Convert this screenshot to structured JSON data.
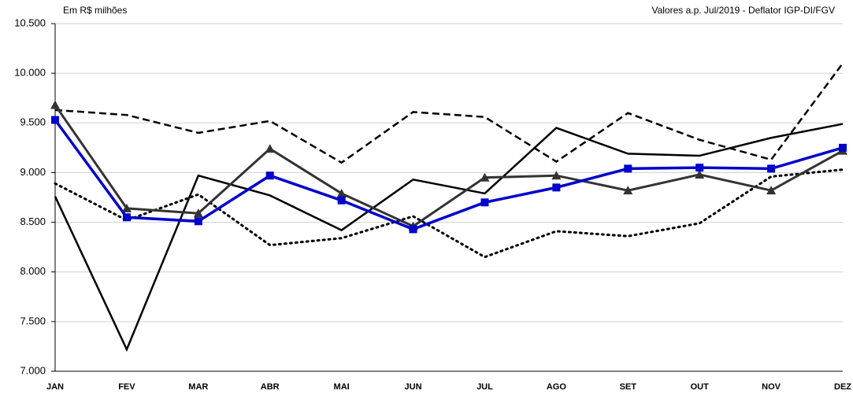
{
  "chart_data": {
    "type": "line",
    "title": "Em R$ milhões",
    "subtitle": "Valores a.p. Jul/2019 - Deflator IGP-DI/FGV",
    "categories": [
      "JAN",
      "FEV",
      "MAR",
      "ABR",
      "MAI",
      "JUN",
      "JUL",
      "AGO",
      "SET",
      "OUT",
      "NOV",
      "DEZ"
    ],
    "ylim": [
      7000,
      10500
    ],
    "yticks": [
      {
        "value": 7000,
        "label": "7.000"
      },
      {
        "value": 7500,
        "label": "7.500"
      },
      {
        "value": 8000,
        "label": "8.000"
      },
      {
        "value": 8500,
        "label": "8.500"
      },
      {
        "value": 9000,
        "label": "9.000"
      },
      {
        "value": 9500,
        "label": "9.500"
      },
      {
        "value": 10000,
        "label": "10.000"
      },
      {
        "value": 10500,
        "label": "10.500"
      }
    ],
    "grid": true,
    "series": [
      {
        "color": "#000000",
        "dash": "dashed",
        "width": 2.5,
        "marker": "none",
        "values": [
          9630,
          9580,
          9400,
          9520,
          9100,
          9610,
          9560,
          9110,
          9600,
          9330,
          9130,
          10100
        ]
      },
      {
        "color": "#000000",
        "dash": "dotted",
        "width": 3,
        "marker": "none",
        "values": [
          8890,
          8520,
          8780,
          8270,
          8340,
          8560,
          8150,
          8410,
          8360,
          8490,
          8960,
          9030
        ]
      },
      {
        "color": "#000000",
        "dash": "solid",
        "width": 2.5,
        "marker": "none",
        "values": [
          8760,
          7220,
          8970,
          8770,
          8420,
          8930,
          8790,
          9450,
          9190,
          9170,
          9350,
          9490
        ]
      },
      {
        "color": "#333333",
        "dash": "solid",
        "width": 3,
        "marker": "triangle",
        "values": [
          9680,
          8640,
          8590,
          9240,
          8790,
          8460,
          8950,
          8970,
          8820,
          8980,
          8820,
          9220
        ]
      },
      {
        "color": "#0000cc",
        "dash": "solid",
        "width": 3.5,
        "marker": "square",
        "values": [
          9530,
          8550,
          8510,
          8970,
          8720,
          8430,
          8700,
          8850,
          9040,
          9050,
          9040,
          9250
        ]
      }
    ]
  }
}
